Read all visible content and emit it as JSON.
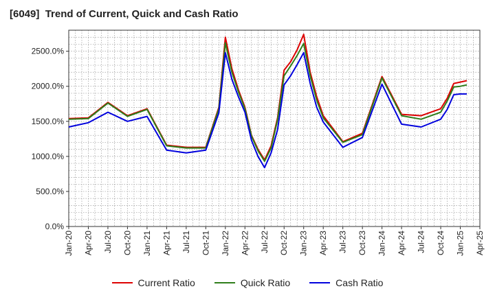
{
  "chart_data": {
    "type": "line",
    "title": "[6049]  Trend of Current, Quick and Cash Ratio",
    "xlabel": "",
    "ylabel": "",
    "ylim": [
      0,
      2800
    ],
    "yticks": [
      0,
      500,
      1000,
      1500,
      2000,
      2500
    ],
    "ytick_labels": [
      "0.0%",
      "500.0%",
      "1000.0%",
      "1500.0%",
      "2000.0%",
      "2500.0%"
    ],
    "xticks": [
      "Jan-20",
      "Apr-20",
      "Jul-20",
      "Oct-20",
      "Jan-21",
      "Apr-21",
      "Jul-21",
      "Oct-21",
      "Jan-22",
      "Apr-22",
      "Jul-22",
      "Oct-22",
      "Jan-23",
      "Apr-23",
      "Jul-23",
      "Oct-23",
      "Jan-24",
      "Apr-24",
      "Jul-24",
      "Oct-24",
      "Jan-25",
      "Apr-25"
    ],
    "x_months": [
      0,
      3,
      6,
      9,
      12,
      15,
      18,
      21,
      23,
      24,
      25,
      26,
      27,
      28,
      29,
      30,
      31,
      32,
      33,
      34,
      35,
      36,
      37,
      38,
      39,
      42,
      45,
      48,
      51,
      54,
      57,
      58,
      59,
      60,
      61
    ],
    "series": [
      {
        "name": "Current Ratio",
        "color": "#dd0000",
        "values": [
          1540,
          1550,
          1770,
          1580,
          1680,
          1160,
          1130,
          1130,
          1700,
          2700,
          2250,
          1950,
          1700,
          1300,
          1100,
          950,
          1150,
          1550,
          2230,
          2350,
          2520,
          2740,
          2200,
          1850,
          1580,
          1210,
          1330,
          2140,
          1600,
          1580,
          1680,
          1830,
          2040,
          2060,
          2080
        ]
      },
      {
        "name": "Quick Ratio",
        "color": "#2e7d1a",
        "values": [
          1530,
          1540,
          1760,
          1570,
          1670,
          1150,
          1120,
          1120,
          1680,
          2620,
          2200,
          1920,
          1680,
          1290,
          1080,
          930,
          1120,
          1520,
          2150,
          2290,
          2440,
          2610,
          2150,
          1800,
          1550,
          1200,
          1310,
          2120,
          1580,
          1530,
          1630,
          1790,
          1990,
          2000,
          2020
        ]
      },
      {
        "name": "Cash Ratio",
        "color": "#0000dd",
        "values": [
          1420,
          1480,
          1630,
          1500,
          1570,
          1090,
          1050,
          1090,
          1620,
          2480,
          2100,
          1850,
          1630,
          1230,
          1000,
          840,
          1050,
          1380,
          2020,
          2150,
          2310,
          2480,
          2040,
          1700,
          1490,
          1130,
          1270,
          2030,
          1460,
          1420,
          1530,
          1670,
          1880,
          1890,
          1890
        ]
      }
    ],
    "legend": [
      "Current Ratio",
      "Quick Ratio",
      "Cash Ratio"
    ],
    "legend_position": "bottom",
    "grid": "dotted"
  }
}
